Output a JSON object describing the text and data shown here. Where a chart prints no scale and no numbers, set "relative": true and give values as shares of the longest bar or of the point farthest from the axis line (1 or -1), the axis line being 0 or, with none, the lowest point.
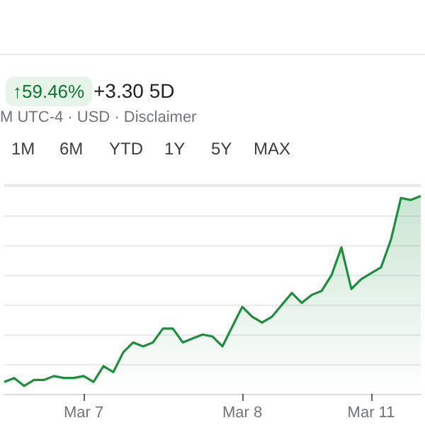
{
  "chart_data": {
    "type": "area",
    "relative": true,
    "color": "#1e8e3e",
    "grid": "y",
    "marker": "none",
    "categories": [
      null,
      null,
      null,
      null,
      null,
      null,
      null,
      null,
      "Mar 7",
      null,
      null,
      null,
      null,
      null,
      null,
      null,
      null,
      null,
      null,
      null,
      null,
      null,
      null,
      null,
      "Mar 8",
      null,
      null,
      null,
      null,
      null,
      null,
      null,
      null,
      null,
      null,
      null,
      null,
      "Mar 11",
      null,
      null,
      null,
      null,
      null
    ],
    "values": [
      0.06,
      0.08,
      0.04,
      0.07,
      0.07,
      0.09,
      0.08,
      0.08,
      0.09,
      0.06,
      0.14,
      0.11,
      0.21,
      0.26,
      0.24,
      0.26,
      0.33,
      0.33,
      0.26,
      0.28,
      0.3,
      0.29,
      0.24,
      0.34,
      0.44,
      0.39,
      0.36,
      0.39,
      0.45,
      0.51,
      0.46,
      0.5,
      0.52,
      0.6,
      0.74,
      0.53,
      0.58,
      0.61,
      0.64,
      0.78,
      0.99,
      0.98,
      1
    ],
    "annotations": [
      "↑59.46%",
      "+3.30 5D",
      "M UTC-4 · USD · Disclaimer",
      "1M",
      "6M",
      "YTD",
      "1Y",
      "5Y",
      "MAX"
    ]
  }
}
